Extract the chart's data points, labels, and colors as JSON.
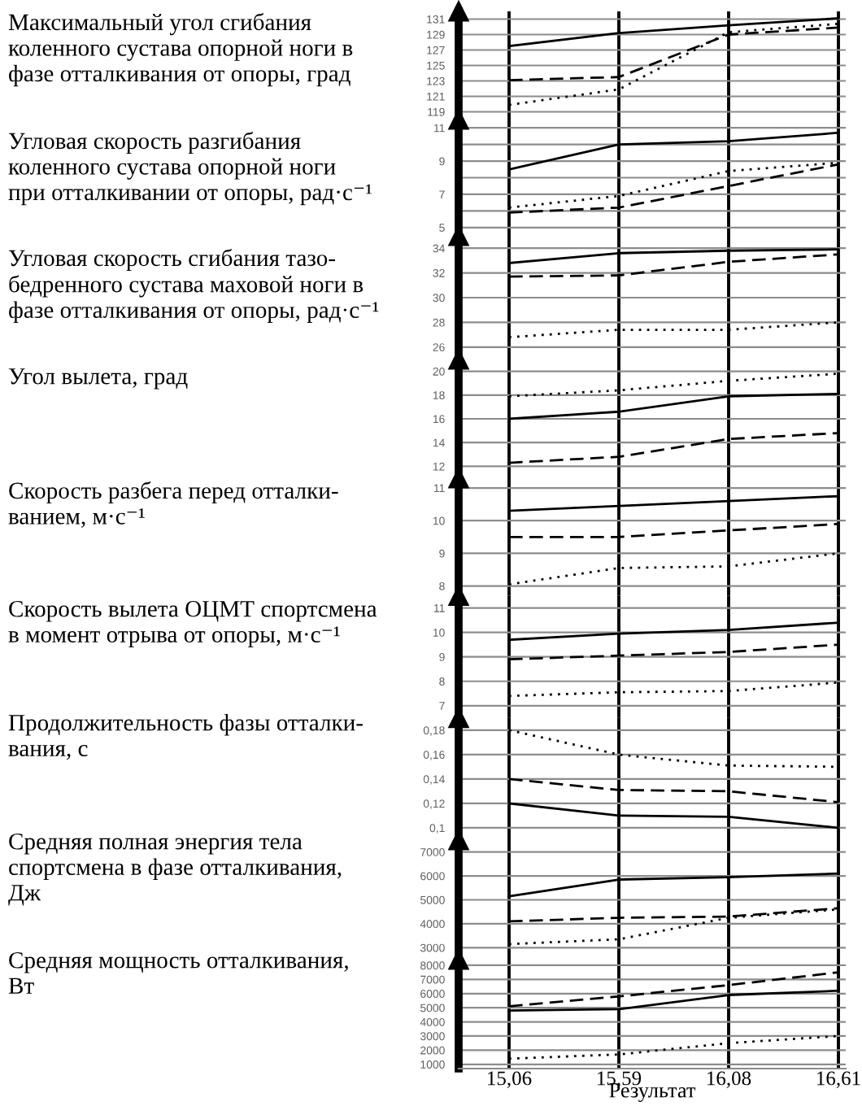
{
  "chart_data": [
    {
      "type": "line",
      "ylabel": "Максимальный угол сгибания\nколенного сустава опорной ноги в\nфазе отталкивания от опоры, град",
      "categories": [
        "15,06",
        "15,59",
        "16,08",
        "16,61"
      ],
      "tick_labels": "y",
      "grid": true,
      "ylim": [
        118,
        132
      ],
      "yticks": [
        119,
        121,
        123,
        125,
        127,
        129,
        131
      ],
      "series": [
        {
          "color": "#000000",
          "line_style": "solid",
          "values": [
            127.5,
            129.2,
            130.2,
            131.1
          ]
        },
        {
          "color": "#000000",
          "line_style": "dashed",
          "values": [
            123.1,
            123.5,
            129.0,
            129.9
          ]
        },
        {
          "color": "#000000",
          "line_style": "dotted",
          "values": [
            119.9,
            121.9,
            129.3,
            130.4
          ]
        }
      ]
    },
    {
      "type": "line",
      "ylabel": "Угловая скорость разгибания\nколенного сустава опорной ноги\nпри отталкивании от опоры, рад·с⁻¹",
      "categories": [
        "15,06",
        "15,59",
        "16,08",
        "16,61"
      ],
      "tick_labels": "y",
      "grid": true,
      "ylim": [
        4.5,
        11.5
      ],
      "yticks": [
        5,
        {
          "value": 6,
          "label": null
        },
        7,
        {
          "value": 8,
          "label": null
        },
        9,
        {
          "value": 10,
          "label": null
        },
        11
      ],
      "series": [
        {
          "color": "#000000",
          "line_style": "solid",
          "values": [
            8.5,
            10.0,
            10.2,
            10.7
          ]
        },
        {
          "color": "#000000",
          "line_style": "dashed",
          "values": [
            5.9,
            6.2,
            7.5,
            8.8
          ]
        },
        {
          "color": "#000000",
          "line_style": "dotted",
          "values": [
            6.2,
            6.9,
            8.4,
            8.9
          ]
        }
      ]
    },
    {
      "type": "line",
      "ylabel": "Угловая скорость сгибания тазо-\nбедренного сустава маховой ноги в\nфазе отталкивания от опоры, рад·с⁻¹",
      "categories": [
        "15,06",
        "15,59",
        "16,08",
        "16,61"
      ],
      "tick_labels": "y",
      "grid": true,
      "ylim": [
        25,
        35
      ],
      "yticks": [
        26,
        28,
        30,
        32,
        34
      ],
      "series": [
        {
          "color": "#000000",
          "line_style": "solid",
          "values": [
            32.8,
            33.6,
            33.8,
            33.9
          ]
        },
        {
          "color": "#000000",
          "line_style": "dashed",
          "values": [
            31.7,
            31.8,
            32.9,
            33.5
          ]
        },
        {
          "color": "#000000",
          "line_style": "dotted",
          "values": [
            26.8,
            27.4,
            27.4,
            28.0
          ]
        }
      ]
    },
    {
      "type": "line",
      "ylabel": "Угол вылета, град",
      "categories": [
        "15,06",
        "15,59",
        "16,08",
        "16,61"
      ],
      "tick_labels": "y",
      "grid": true,
      "ylim": [
        11,
        21
      ],
      "yticks": [
        12,
        14,
        16,
        18,
        20
      ],
      "series": [
        {
          "color": "#000000",
          "line_style": "solid",
          "values": [
            16.0,
            16.6,
            17.9,
            18.1
          ]
        },
        {
          "color": "#000000",
          "line_style": "dashed",
          "values": [
            12.3,
            12.8,
            14.3,
            14.8
          ]
        },
        {
          "color": "#000000",
          "line_style": "dotted",
          "values": [
            17.9,
            18.4,
            19.2,
            19.8
          ]
        }
      ]
    },
    {
      "type": "line",
      "ylabel": "Скорость разбега перед отталки-\nванием, м·с⁻¹",
      "categories": [
        "15,06",
        "15,59",
        "16,08",
        "16,61"
      ],
      "tick_labels": "y",
      "grid": true,
      "ylim": [
        7.7,
        11.3
      ],
      "yticks": [
        8,
        9,
        10,
        11
      ],
      "series": [
        {
          "color": "#000000",
          "line_style": "solid",
          "values": [
            10.3,
            10.45,
            10.6,
            10.75
          ]
        },
        {
          "color": "#000000",
          "line_style": "dashed",
          "values": [
            9.5,
            9.5,
            9.7,
            9.9
          ]
        },
        {
          "color": "#000000",
          "line_style": "dotted",
          "values": [
            8.05,
            8.55,
            8.6,
            9.0
          ]
        }
      ]
    },
    {
      "type": "line",
      "ylabel": "Скорость вылета ОЦМТ спортсмена\nв момент отрыва от опоры, м·с⁻¹",
      "categories": [
        "15,06",
        "15,59",
        "16,08",
        "16,61"
      ],
      "tick_labels": "y",
      "grid": true,
      "ylim": [
        6.5,
        11.5
      ],
      "yticks": [
        7,
        8,
        9,
        10,
        11
      ],
      "series": [
        {
          "color": "#000000",
          "line_style": "solid",
          "values": [
            9.7,
            9.95,
            10.1,
            10.4
          ]
        },
        {
          "color": "#000000",
          "line_style": "dashed",
          "values": [
            8.9,
            9.05,
            9.2,
            9.5
          ]
        },
        {
          "color": "#000000",
          "line_style": "dotted",
          "values": [
            7.4,
            7.55,
            7.6,
            7.95
          ]
        }
      ]
    },
    {
      "type": "line",
      "ylabel": "Продолжительность фазы отталки-\nвания, с",
      "categories": [
        "15,06",
        "15,59",
        "16,08",
        "16,61"
      ],
      "tick_labels": "y",
      "grid": true,
      "ylim": [
        0.09,
        0.19
      ],
      "yticks": [
        {
          "value": 0.1,
          "label": "0,1"
        },
        {
          "value": 0.12,
          "label": "0,12"
        },
        {
          "value": 0.14,
          "label": "0,14"
        },
        {
          "value": 0.16,
          "label": "0,16"
        },
        {
          "value": 0.18,
          "label": "0,18"
        }
      ],
      "series": [
        {
          "color": "#000000",
          "line_style": "solid",
          "values": [
            0.12,
            0.11,
            0.109,
            0.1
          ]
        },
        {
          "color": "#000000",
          "line_style": "dashed",
          "values": [
            0.14,
            0.131,
            0.13,
            0.121
          ]
        },
        {
          "color": "#000000",
          "line_style": "dotted",
          "values": [
            0.18,
            0.16,
            0.151,
            0.15
          ]
        }
      ]
    },
    {
      "type": "line",
      "ylabel": "Средняя полная энергия тела\nспортсмена в фазе отталкивания,\nДж",
      "categories": [
        "15,06",
        "15,59",
        "16,08",
        "16,61"
      ],
      "tick_labels": "y",
      "grid": true,
      "ylim": [
        2500,
        7500
      ],
      "yticks": [
        3000,
        4000,
        5000,
        6000,
        7000
      ],
      "series": [
        {
          "color": "#000000",
          "line_style": "solid",
          "values": [
            5150,
            5850,
            5950,
            6100
          ]
        },
        {
          "color": "#000000",
          "line_style": "dashed",
          "values": [
            4100,
            4250,
            4300,
            4650
          ]
        },
        {
          "color": "#000000",
          "line_style": "dotted",
          "values": [
            3150,
            3350,
            4250,
            4600
          ]
        }
      ]
    },
    {
      "type": "line",
      "ylabel": "Средняя мощность отталкивания,\nВт",
      "xlabel": "Результат",
      "categories": [
        "15,06",
        "15,59",
        "16,08",
        "16,61"
      ],
      "grid": true,
      "ylim": [
        700,
        8400
      ],
      "yticks": [
        1000,
        2000,
        3000,
        4000,
        5000,
        6000,
        7000,
        8000
      ],
      "series": [
        {
          "color": "#000000",
          "line_style": "solid",
          "values": [
            4800,
            4900,
            5900,
            6200
          ]
        },
        {
          "color": "#000000",
          "line_style": "dashed",
          "values": [
            5100,
            5800,
            6600,
            7500
          ]
        },
        {
          "color": "#000000",
          "line_style": "dotted",
          "values": [
            1400,
            1700,
            2500,
            3000
          ]
        }
      ]
    }
  ]
}
